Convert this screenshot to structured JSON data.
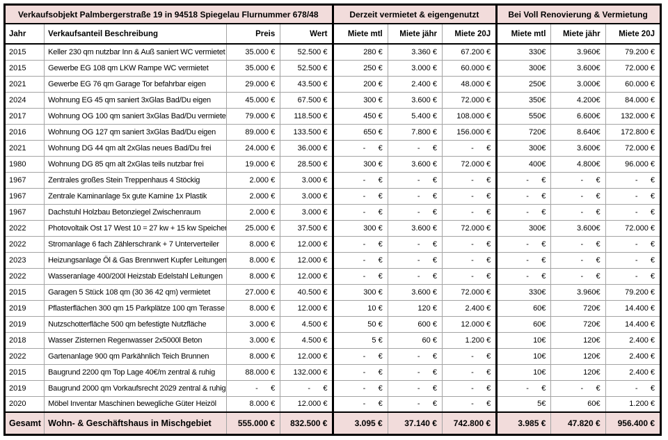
{
  "table": {
    "colors": {
      "header_pink": "#f2dcdb",
      "grid_line": "#a3a3a3",
      "border": "#000000"
    },
    "section_titles": {
      "left": "Verkaufsobjekt Palmbergerstraße 19 in 94518 Spiegelau Flurnummer 678/48",
      "mid": "Derzeit vermietet & eigengenutzt",
      "right": "Bei Voll Renovierung & Vermietung"
    },
    "columns": [
      "Jahr",
      "Verkaufsanteil Beschreibung",
      "Preis",
      "Wert",
      "Miete mtl",
      "Miete jähr",
      "Miete 20J",
      "Miete mtl",
      "Miete jähr",
      "Miete 20J"
    ],
    "rows": [
      {
        "jahr": "2015",
        "beschreibung": "Keller 230 qm nutzbar Inn & Auß saniert WC vermietet",
        "preis": "35.000 €",
        "wert": "52.500 €",
        "miete_mtl": "280 €",
        "miete_jahr": "3.360 €",
        "miete_20j": "67.200 €",
        "reno_mtl": "330€",
        "reno_jahr": "3.960€",
        "reno_20j": "79.200 €"
      },
      {
        "jahr": "2015",
        "beschreibung": "Gewerbe EG 108 qm LKW Rampe WC vermietet",
        "preis": "35.000 €",
        "wert": "52.500 €",
        "miete_mtl": "250 €",
        "miete_jahr": "3.000 €",
        "miete_20j": "60.000 €",
        "reno_mtl": "300€",
        "reno_jahr": "3.600€",
        "reno_20j": "72.000 €"
      },
      {
        "jahr": "2021",
        "beschreibung": "Gewerbe EG 76 qm Garage Tor befahrbar eigen",
        "preis": "29.000 €",
        "wert": "43.500 €",
        "miete_mtl": "200 €",
        "miete_jahr": "2.400 €",
        "miete_20j": "48.000 €",
        "reno_mtl": "250€",
        "reno_jahr": "3.000€",
        "reno_20j": "60.000 €"
      },
      {
        "jahr": "2024",
        "beschreibung": "Wohnung EG 45 qm saniert 3xGlas Bad/Du eigen",
        "preis": "45.000 €",
        "wert": "67.500 €",
        "miete_mtl": "300 €",
        "miete_jahr": "3.600 €",
        "miete_20j": "72.000 €",
        "reno_mtl": "350€",
        "reno_jahr": "4.200€",
        "reno_20j": "84.000 €"
      },
      {
        "jahr": "2017",
        "beschreibung": "Wohnung OG 100 qm saniert 3xGlas Bad/Du vermietet",
        "preis": "79.000 €",
        "wert": "118.500 €",
        "miete_mtl": "450 €",
        "miete_jahr": "5.400 €",
        "miete_20j": "108.000 €",
        "reno_mtl": "550€",
        "reno_jahr": "6.600€",
        "reno_20j": "132.000 €"
      },
      {
        "jahr": "2016",
        "beschreibung": "Wohnung OG 127 qm saniert 3xGlas Bad/Du eigen",
        "preis": "89.000 €",
        "wert": "133.500 €",
        "miete_mtl": "650 €",
        "miete_jahr": "7.800 €",
        "miete_20j": "156.000 €",
        "reno_mtl": "720€",
        "reno_jahr": "8.640€",
        "reno_20j": "172.800 €"
      },
      {
        "jahr": "2021",
        "beschreibung": "Wohnung DG 44 qm alt 2xGlas neues Bad/Du frei",
        "preis": "24.000 €",
        "wert": "36.000 €",
        "miete_mtl": "-      €",
        "miete_jahr": "-      €",
        "miete_20j": "-      €",
        "reno_mtl": "300€",
        "reno_jahr": "3.600€",
        "reno_20j": "72.000 €"
      },
      {
        "jahr": "1980",
        "beschreibung": "Wohnung DG 85 qm alt 2xGlas teils nutzbar frei",
        "preis": "19.000 €",
        "wert": "28.500 €",
        "miete_mtl": "300 €",
        "miete_jahr": "3.600 €",
        "miete_20j": "72.000 €",
        "reno_mtl": "400€",
        "reno_jahr": "4.800€",
        "reno_20j": "96.000 €"
      },
      {
        "jahr": "1967",
        "beschreibung": "Zentrales großes Stein Treppenhaus 4 Stöckig",
        "preis": "2.000 €",
        "wert": "3.000 €",
        "miete_mtl": "-      €",
        "miete_jahr": "-      €",
        "miete_20j": "-      €",
        "reno_mtl": "-      €",
        "reno_jahr": "-      €",
        "reno_20j": "-      €"
      },
      {
        "jahr": "1967",
        "beschreibung": "Zentrale Kaminanlage 5x gute Kamine 1x Plastik",
        "preis": "2.000 €",
        "wert": "3.000 €",
        "miete_mtl": "-      €",
        "miete_jahr": "-      €",
        "miete_20j": "-      €",
        "reno_mtl": "-      €",
        "reno_jahr": "-      €",
        "reno_20j": "-      €"
      },
      {
        "jahr": "1967",
        "beschreibung": "Dachstuhl Holzbau Betonziegel Zwischenraum",
        "preis": "2.000 €",
        "wert": "3.000 €",
        "miete_mtl": "-      €",
        "miete_jahr": "-      €",
        "miete_20j": "-      €",
        "reno_mtl": "-      €",
        "reno_jahr": "-      €",
        "reno_20j": "-      €"
      },
      {
        "jahr": "2022",
        "beschreibung": "Photovoltaik Ost 17 West 10 = 27 kw + 15 kw Speicher",
        "preis": "25.000 €",
        "wert": "37.500 €",
        "miete_mtl": "300 €",
        "miete_jahr": "3.600 €",
        "miete_20j": "72.000 €",
        "reno_mtl": "300€",
        "reno_jahr": "3.600€",
        "reno_20j": "72.000 €"
      },
      {
        "jahr": "2022",
        "beschreibung": "Stromanlage 6 fach Zählerschrank + 7 Unterverteiler",
        "preis": "8.000 €",
        "wert": "12.000 €",
        "miete_mtl": "-      €",
        "miete_jahr": "-      €",
        "miete_20j": "-      €",
        "reno_mtl": "-      €",
        "reno_jahr": "-      €",
        "reno_20j": "-      €"
      },
      {
        "jahr": "2023",
        "beschreibung": "Heizungsanlage Öl & Gas Brennwert Kupfer Leitungen",
        "preis": "8.000 €",
        "wert": "12.000 €",
        "miete_mtl": "-      €",
        "miete_jahr": "-      €",
        "miete_20j": "-      €",
        "reno_mtl": "-      €",
        "reno_jahr": "-      €",
        "reno_20j": "-      €"
      },
      {
        "jahr": "2022",
        "beschreibung": "Wasseranlage 400/200l Heizstab Edelstahl Leitungen",
        "preis": "8.000 €",
        "wert": "12.000 €",
        "miete_mtl": "-      €",
        "miete_jahr": "-      €",
        "miete_20j": "-      €",
        "reno_mtl": "-      €",
        "reno_jahr": "-      €",
        "reno_20j": "-      €"
      },
      {
        "jahr": "2015",
        "beschreibung": "Garagen 5 Stück 108 qm (30 36 42 qm) vermietet",
        "preis": "27.000 €",
        "wert": "40.500 €",
        "miete_mtl": "300 €",
        "miete_jahr": "3.600 €",
        "miete_20j": "72.000 €",
        "reno_mtl": "330€",
        "reno_jahr": "3.960€",
        "reno_20j": "79.200 €"
      },
      {
        "jahr": "2019",
        "beschreibung": "Pflasterflächen 300 qm 15 Parkplätze 100 qm Terasse",
        "preis": "8.000 €",
        "wert": "12.000 €",
        "miete_mtl": "10 €",
        "miete_jahr": "120 €",
        "miete_20j": "2.400 €",
        "reno_mtl": "60€",
        "reno_jahr": "720€",
        "reno_20j": "14.400 €"
      },
      {
        "jahr": "2019",
        "beschreibung": "Nutzschotterfläche 500 qm befestigte Nutzfläche",
        "preis": "3.000 €",
        "wert": "4.500 €",
        "miete_mtl": "50 €",
        "miete_jahr": "600 €",
        "miete_20j": "12.000 €",
        "reno_mtl": "60€",
        "reno_jahr": "720€",
        "reno_20j": "14.400 €"
      },
      {
        "jahr": "2018",
        "beschreibung": "Wasser Zisternen Regenwasser 2x5000l Beton",
        "preis": "3.000 €",
        "wert": "4.500 €",
        "miete_mtl": "5 €",
        "miete_jahr": "60 €",
        "miete_20j": "1.200 €",
        "reno_mtl": "10€",
        "reno_jahr": "120€",
        "reno_20j": "2.400 €"
      },
      {
        "jahr": "2022",
        "beschreibung": "Gartenanlage 900 qm Parkähnlich Teich Brunnen",
        "preis": "8.000 €",
        "wert": "12.000 €",
        "miete_mtl": "-      €",
        "miete_jahr": "-      €",
        "miete_20j": "-      €",
        "reno_mtl": "10€",
        "reno_jahr": "120€",
        "reno_20j": "2.400 €"
      },
      {
        "jahr": "2015",
        "beschreibung": "Baugrund 2200 qm Top Lage 40€/m zentral & ruhig",
        "preis": "88.000 €",
        "wert": "132.000 €",
        "miete_mtl": "-      €",
        "miete_jahr": "-      €",
        "miete_20j": "-      €",
        "reno_mtl": "10€",
        "reno_jahr": "120€",
        "reno_20j": "2.400 €"
      },
      {
        "jahr": "2019",
        "beschreibung": "Baugrund 2000 qm Vorkaufsrecht 2029 zentral & ruhig",
        "preis": "-      €",
        "wert": "-      €",
        "miete_mtl": "-      €",
        "miete_jahr": "-      €",
        "miete_20j": "-      €",
        "reno_mtl": "-      €",
        "reno_jahr": "-      €",
        "reno_20j": "-      €"
      },
      {
        "jahr": "2020",
        "beschreibung": "Möbel Inventar Maschinen bewegliche Güter Heizöl",
        "preis": "8.000 €",
        "wert": "12.000 €",
        "miete_mtl": "-      €",
        "miete_jahr": "-      €",
        "miete_20j": "-      €",
        "reno_mtl": "5€",
        "reno_jahr": "60€",
        "reno_20j": "1.200 €"
      }
    ],
    "total": {
      "label": "Gesamt",
      "beschreibung": "Wohn- & Geschäftshaus in Mischgebiet",
      "preis": "555.000 €",
      "wert": "832.500 €",
      "miete_mtl": "3.095 €",
      "miete_jahr": "37.140 €",
      "miete_20j": "742.800 €",
      "reno_mtl": "3.985 €",
      "reno_jahr": "47.820 €",
      "reno_20j": "956.400 €"
    }
  }
}
